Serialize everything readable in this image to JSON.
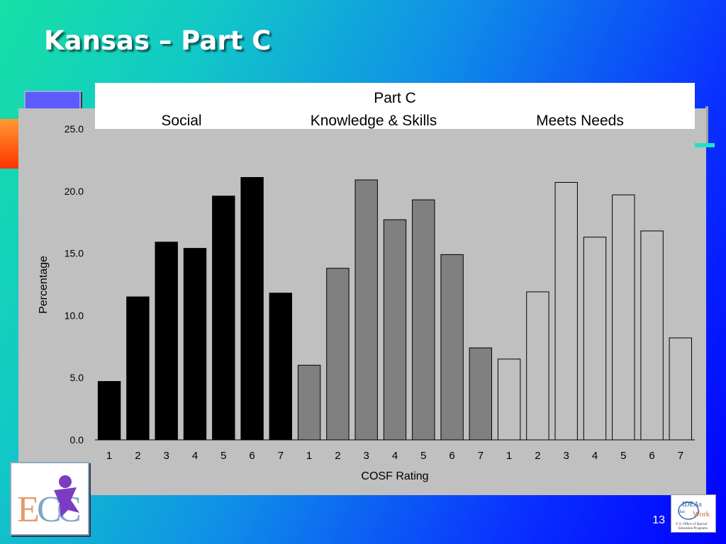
{
  "slide": {
    "title": "Kansas – Part C",
    "page_number": "13"
  },
  "logos": {
    "ideas": "IDEAs that Work U.S. Office of Special Education Programs"
  },
  "chart_data": {
    "type": "bar",
    "title": "Part C",
    "group_labels": [
      "Social",
      "Knowledge & Skills",
      "Meets Needs"
    ],
    "xlabel": "COSF Rating",
    "ylabel": "Percentage",
    "ylim": [
      0,
      25
    ],
    "yticks": [
      "0.0",
      "5.0",
      "10.0",
      "15.0",
      "20.0",
      "25.0"
    ],
    "categories": [
      "1",
      "2",
      "3",
      "4",
      "5",
      "6",
      "7"
    ],
    "series": [
      {
        "color": "#000000",
        "values": [
          4.7,
          11.5,
          15.9,
          15.4,
          19.6,
          21.1,
          11.8
        ]
      },
      {
        "color": "#808080",
        "values": [
          6.0,
          13.8,
          20.9,
          17.7,
          19.3,
          14.9,
          7.4
        ]
      },
      {
        "color": "#c0c0c0",
        "values": [
          6.5,
          11.9,
          20.7,
          16.3,
          19.7,
          16.8,
          8.2
        ]
      }
    ],
    "grid": false,
    "legend": "none"
  }
}
